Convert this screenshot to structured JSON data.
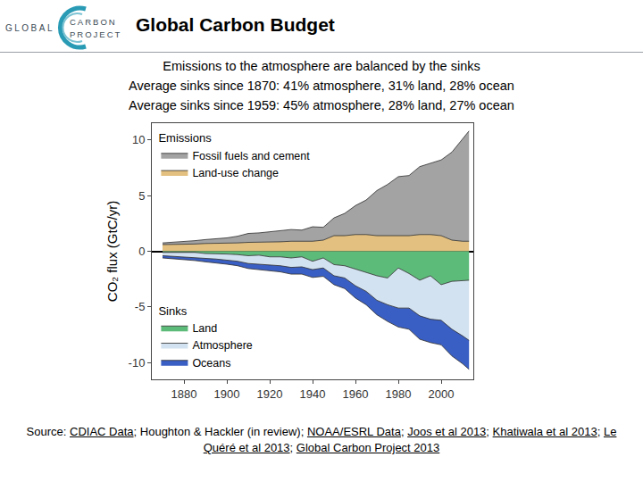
{
  "page": {
    "logo": [
      "GLOBAL",
      "CARBON",
      "PROJECT"
    ],
    "title": "Global Carbon Budget",
    "subtitles": [
      "Emissions to the atmosphere are balanced by the sinks",
      "Average sinks since 1870: 41% atmosphere, 31% land, 28% ocean",
      "Average sinks since 1959: 45% atmosphere, 28% land, 27% ocean"
    ],
    "source": {
      "prefix": "Source: ",
      "separator": "; ",
      "items": [
        {
          "text": "CDIAC Data",
          "underlined": true
        },
        {
          "text": "Houghton & Hackler (in review)",
          "underlined": false
        },
        {
          "text": "NOAA/ESRL Data",
          "underlined": true
        },
        {
          "text": "Joos et al 2013",
          "underlined": true
        },
        {
          "text": "Khatiwala et al 2013",
          "underlined": true
        },
        {
          "text": "Le Quéré et al 2013",
          "underlined": true
        },
        {
          "text": "Global Carbon Project 2013",
          "underlined": true
        }
      ]
    }
  },
  "chart_data": {
    "type": "area",
    "stacked": true,
    "y_label": "CO₂ flux (GtC/yr)",
    "x": [
      1870,
      1875,
      1880,
      1885,
      1890,
      1895,
      1900,
      1905,
      1910,
      1915,
      1920,
      1925,
      1930,
      1935,
      1940,
      1945,
      1950,
      1955,
      1960,
      1965,
      1970,
      1975,
      1980,
      1985,
      1990,
      1995,
      2000,
      2005,
      2010,
      2013
    ],
    "xlim": [
      1865,
      2015
    ],
    "xticks": [
      1880,
      1900,
      1920,
      1940,
      1960,
      1980,
      2000
    ],
    "ylim": [
      -11.5,
      11.5
    ],
    "yticks": [
      -10,
      -5,
      0,
      5,
      10
    ],
    "grid": false,
    "groups": [
      {
        "title": "Emissions",
        "legend": "upper left"
      },
      {
        "title": "Sinks",
        "legend": "lower left"
      }
    ],
    "series": [
      {
        "name": "Land-use change",
        "group": "Emissions",
        "color": "#e3c07f",
        "values": [
          0.6,
          0.6,
          0.65,
          0.65,
          0.7,
          0.7,
          0.7,
          0.75,
          0.8,
          0.8,
          0.85,
          0.85,
          0.9,
          0.9,
          0.9,
          1.0,
          1.4,
          1.4,
          1.5,
          1.5,
          1.4,
          1.4,
          1.4,
          1.4,
          1.5,
          1.5,
          1.4,
          1.0,
          0.9,
          0.9
        ]
      },
      {
        "name": "Fossil fuels and cement",
        "group": "Emissions",
        "color": "#a3a3a3",
        "values": [
          0.15,
          0.2,
          0.25,
          0.3,
          0.35,
          0.4,
          0.5,
          0.6,
          0.8,
          0.85,
          0.9,
          0.95,
          1.05,
          1.0,
          1.3,
          1.15,
          1.6,
          2.0,
          2.6,
          3.1,
          4.05,
          4.6,
          5.3,
          5.4,
          6.1,
          6.4,
          6.8,
          7.9,
          9.2,
          9.9
        ]
      },
      {
        "name": "Land",
        "group": "Sinks",
        "color": "#5dbb7a",
        "values": [
          -0.1,
          -0.1,
          -0.15,
          -0.1,
          -0.2,
          -0.2,
          -0.25,
          -0.3,
          -0.4,
          -0.35,
          -0.5,
          -0.5,
          -0.6,
          -0.5,
          -0.9,
          -0.6,
          -1.2,
          -1.3,
          -1.6,
          -1.9,
          -2.2,
          -2.4,
          -1.5,
          -2.0,
          -2.6,
          -2.2,
          -3.0,
          -2.7,
          -2.6,
          -2.6
        ]
      },
      {
        "name": "Atmosphere",
        "group": "Sinks",
        "color": "#d2e2f0",
        "values": [
          -0.3,
          -0.35,
          -0.4,
          -0.45,
          -0.45,
          -0.5,
          -0.55,
          -0.6,
          -0.7,
          -0.8,
          -0.75,
          -0.8,
          -0.85,
          -0.9,
          -0.75,
          -0.9,
          -1.0,
          -1.1,
          -1.5,
          -1.7,
          -2.2,
          -2.4,
          -3.6,
          -3.1,
          -3.2,
          -3.9,
          -3.2,
          -4.3,
          -5.0,
          -5.4
        ]
      },
      {
        "name": "Oceans",
        "group": "Sinks",
        "color": "#3a5fc4",
        "values": [
          -0.2,
          -0.22,
          -0.25,
          -0.28,
          -0.3,
          -0.33,
          -0.36,
          -0.4,
          -0.45,
          -0.5,
          -0.5,
          -0.55,
          -0.6,
          -0.65,
          -0.7,
          -0.75,
          -0.8,
          -0.95,
          -1.1,
          -1.2,
          -1.3,
          -1.5,
          -1.7,
          -1.9,
          -2.1,
          -2.1,
          -2.2,
          -2.4,
          -2.5,
          -2.6
        ]
      }
    ]
  }
}
